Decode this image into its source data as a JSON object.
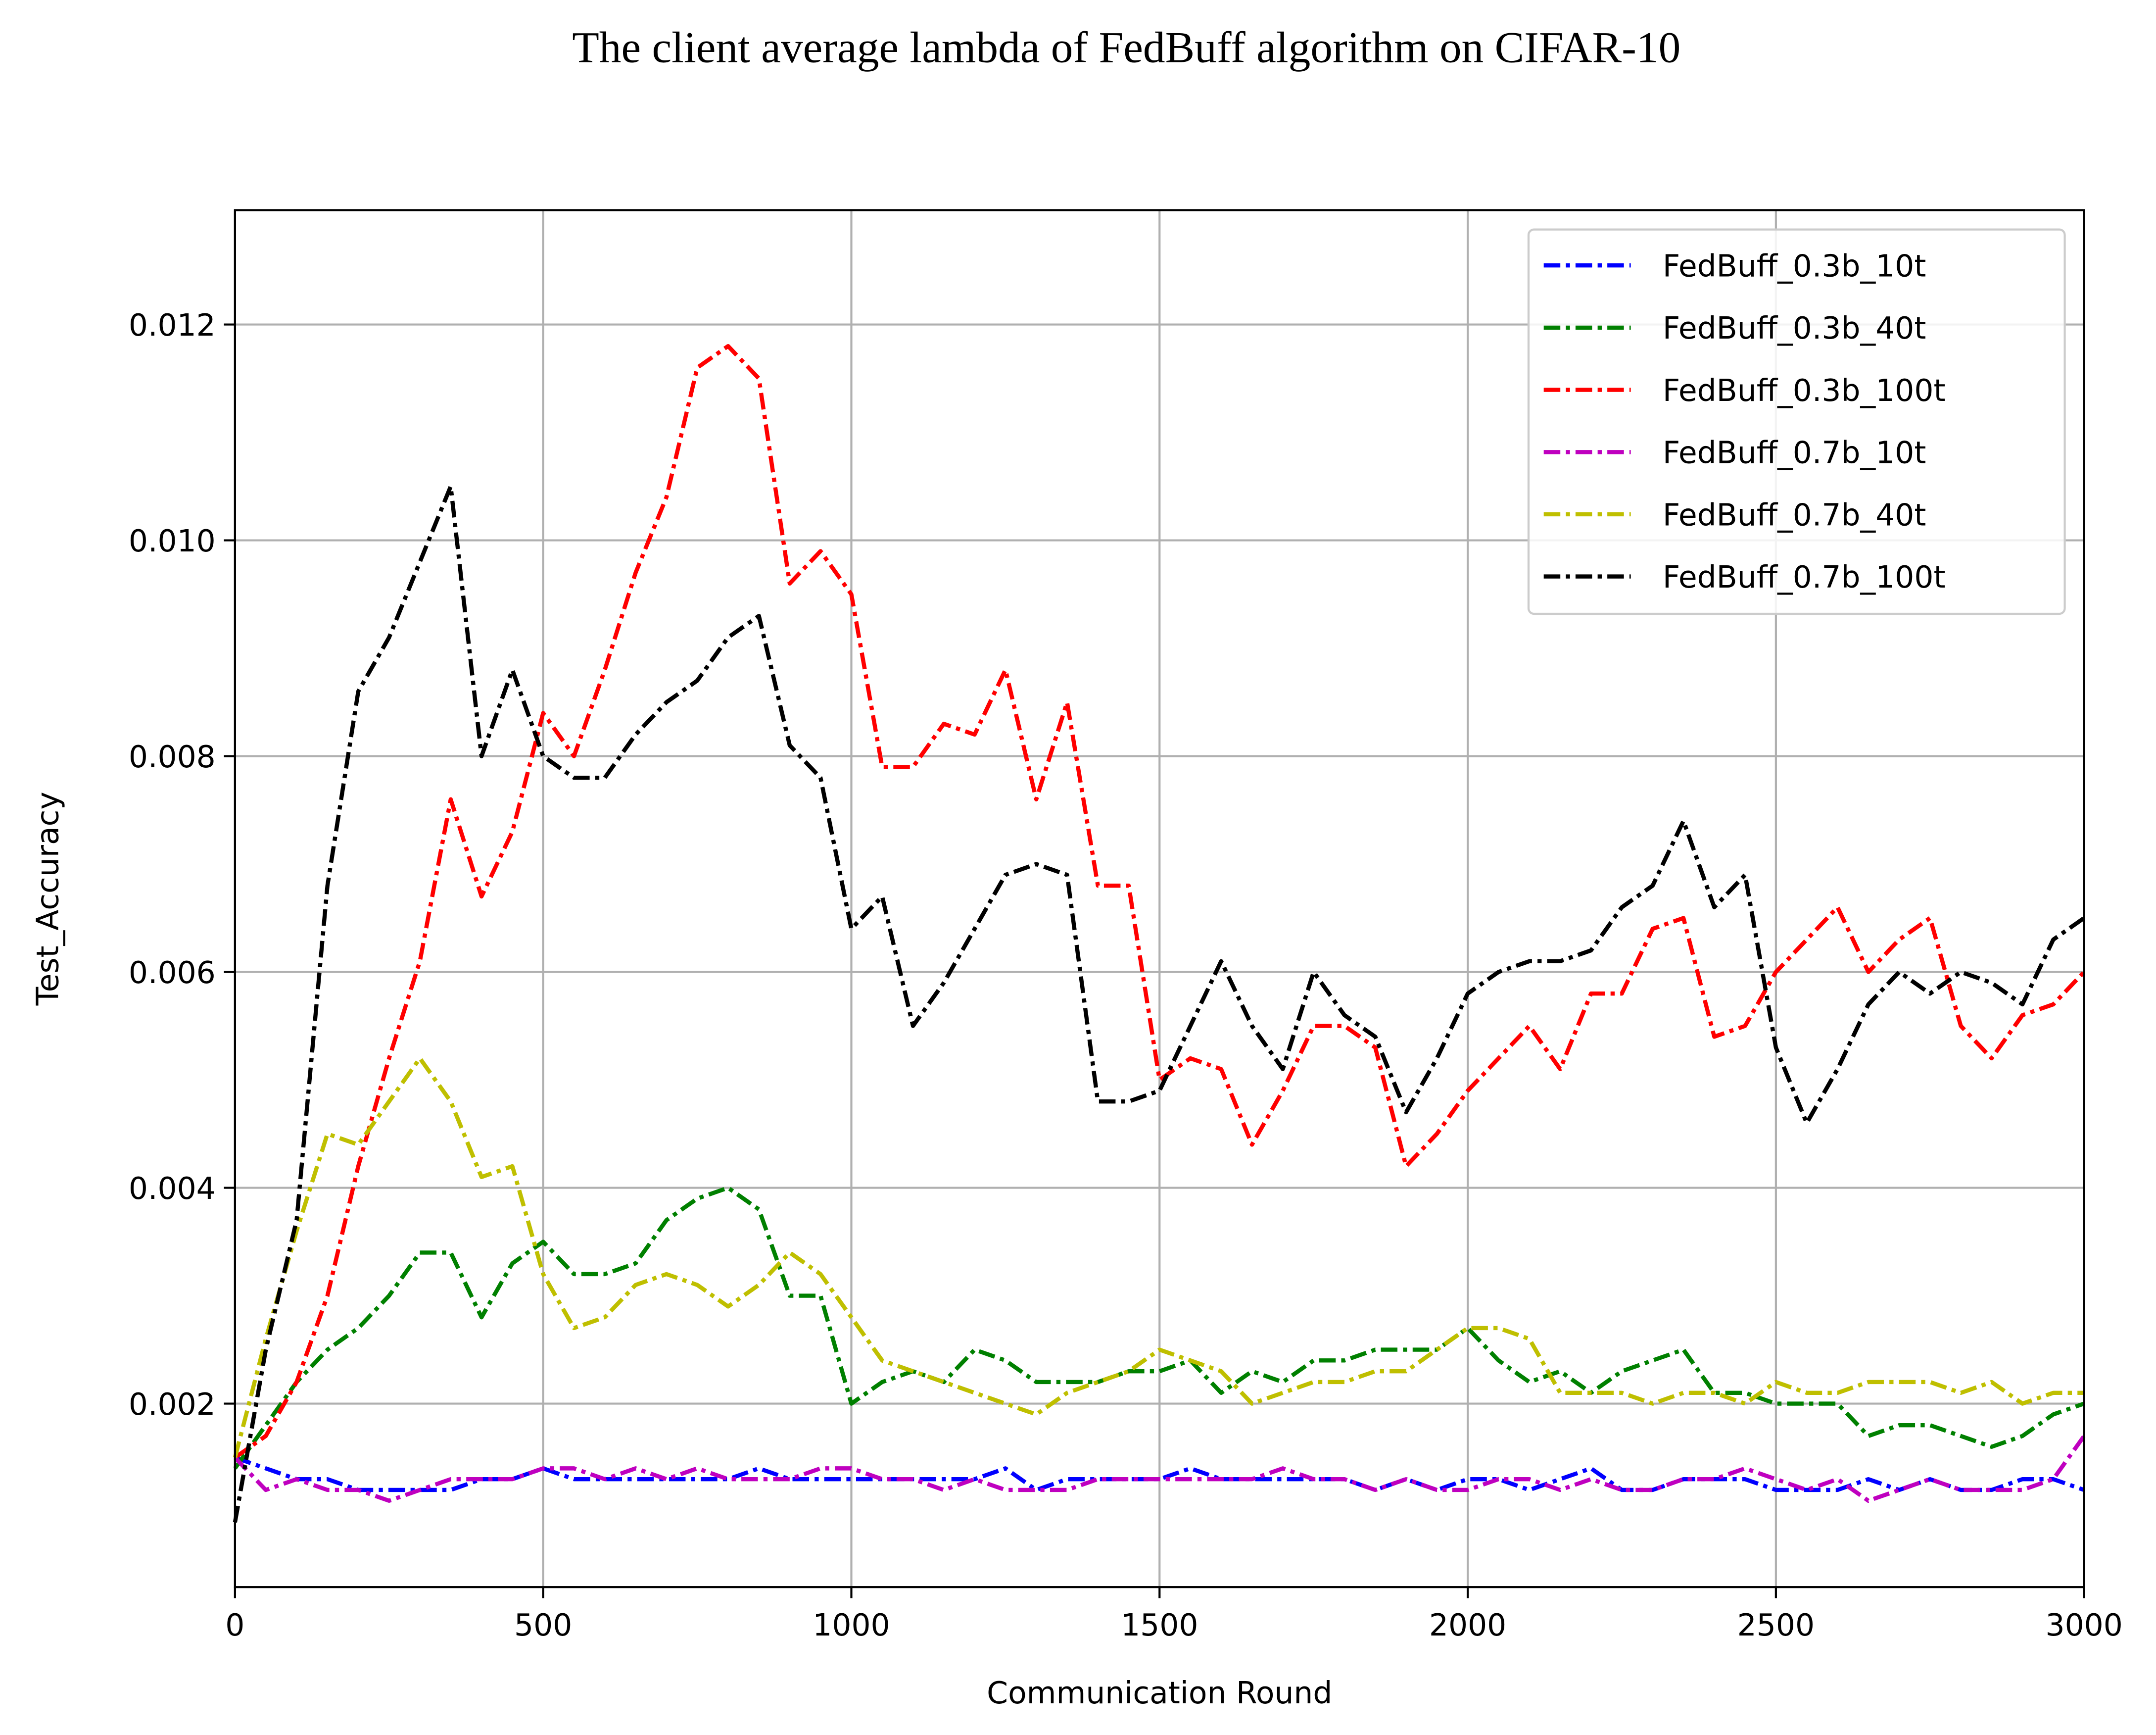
{
  "chart_data": {
    "type": "line",
    "title": "The client average lambda of FedBuff algorithm on CIFAR-10",
    "x_label": "Communication Round",
    "y_label": "Test_Accuracy",
    "xlim": [
      0,
      3000
    ],
    "ylim": [
      0.0003,
      0.01306
    ],
    "xticks": [
      0,
      500,
      1000,
      1500,
      2000,
      2500,
      3000
    ],
    "yticks": [
      0.002,
      0.004,
      0.006,
      0.008,
      {
        "value": 0.01,
        "label": "0.010"
      },
      0.012
    ],
    "grid": true,
    "legend": "upper right",
    "line_style": "dashdot",
    "x": [
      0,
      50,
      100,
      150,
      200,
      250,
      300,
      350,
      400,
      450,
      500,
      550,
      600,
      650,
      700,
      750,
      800,
      850,
      900,
      950,
      1000,
      1050,
      1100,
      1150,
      1200,
      1250,
      1300,
      1350,
      1400,
      1450,
      1500,
      1550,
      1600,
      1650,
      1700,
      1750,
      1800,
      1850,
      1900,
      1950,
      2000,
      2050,
      2100,
      2150,
      2200,
      2250,
      2300,
      2350,
      2400,
      2450,
      2500,
      2550,
      2600,
      2650,
      2700,
      2750,
      2800,
      2850,
      2900,
      2950,
      3000
    ],
    "series": [
      {
        "name": "FedBuff_0.3b_10t",
        "color": "#0000ff",
        "values": [
          0.0015,
          0.0014,
          0.0013,
          0.0013,
          0.0012,
          0.0012,
          0.0012,
          0.0012,
          0.0013,
          0.0013,
          0.0014,
          0.0013,
          0.0013,
          0.0013,
          0.0013,
          0.0013,
          0.0013,
          0.0014,
          0.0013,
          0.0013,
          0.0013,
          0.0013,
          0.0013,
          0.0013,
          0.0013,
          0.0014,
          0.0012,
          0.0013,
          0.0013,
          0.0013,
          0.0013,
          0.0014,
          0.0013,
          0.0013,
          0.0013,
          0.0013,
          0.0013,
          0.0012,
          0.0013,
          0.0012,
          0.0013,
          0.0013,
          0.0012,
          0.0013,
          0.0014,
          0.0012,
          0.0012,
          0.0013,
          0.0013,
          0.0013,
          0.0012,
          0.0012,
          0.0012,
          0.0013,
          0.0012,
          0.0013,
          0.0012,
          0.0012,
          0.0013,
          0.0013,
          0.0012
        ]
      },
      {
        "name": "FedBuff_0.3b_40t",
        "color": "#008000",
        "values": [
          0.0014,
          0.0018,
          0.0022,
          0.0025,
          0.0027,
          0.003,
          0.0034,
          0.0034,
          0.0028,
          0.0033,
          0.0035,
          0.0032,
          0.0032,
          0.0033,
          0.0037,
          0.0039,
          0.004,
          0.0038,
          0.003,
          0.003,
          0.002,
          0.0022,
          0.0023,
          0.0022,
          0.0025,
          0.0024,
          0.0022,
          0.0022,
          0.0022,
          0.0023,
          0.0023,
          0.0024,
          0.0021,
          0.0023,
          0.0022,
          0.0024,
          0.0024,
          0.0025,
          0.0025,
          0.0025,
          0.0027,
          0.0024,
          0.0022,
          0.0023,
          0.0021,
          0.0023,
          0.0024,
          0.0025,
          0.0021,
          0.0021,
          0.002,
          0.002,
          0.002,
          0.0017,
          0.0018,
          0.0018,
          0.0017,
          0.0016,
          0.0017,
          0.0019,
          0.002
        ]
      },
      {
        "name": "FedBuff_0.3b_100t",
        "color": "#ff0000",
        "values": [
          0.0015,
          0.0017,
          0.0022,
          0.003,
          0.0042,
          0.0052,
          0.0061,
          0.0076,
          0.0067,
          0.0073,
          0.0084,
          0.008,
          0.0088,
          0.0097,
          0.0104,
          0.0116,
          0.0118,
          0.0115,
          0.0096,
          0.0099,
          0.0095,
          0.0079,
          0.0079,
          0.0083,
          0.0082,
          0.0088,
          0.0076,
          0.0085,
          0.0068,
          0.0068,
          0.005,
          0.0052,
          0.0051,
          0.0044,
          0.0049,
          0.0055,
          0.0055,
          0.0053,
          0.0042,
          0.0045,
          0.0049,
          0.0052,
          0.0055,
          0.0051,
          0.0058,
          0.0058,
          0.0064,
          0.0065,
          0.0054,
          0.0055,
          0.006,
          0.0063,
          0.0066,
          0.006,
          0.0063,
          0.0065,
          0.0055,
          0.0052,
          0.0056,
          0.0057,
          0.006
        ]
      },
      {
        "name": "FedBuff_0.7b_10t",
        "color": "#bf00bf",
        "values": [
          0.0015,
          0.0012,
          0.0013,
          0.0012,
          0.0012,
          0.0011,
          0.0012,
          0.0013,
          0.0013,
          0.0013,
          0.0014,
          0.0014,
          0.0013,
          0.0014,
          0.0013,
          0.0014,
          0.0013,
          0.0013,
          0.0013,
          0.0014,
          0.0014,
          0.0013,
          0.0013,
          0.0012,
          0.0013,
          0.0012,
          0.0012,
          0.0012,
          0.0013,
          0.0013,
          0.0013,
          0.0013,
          0.0013,
          0.0013,
          0.0014,
          0.0013,
          0.0013,
          0.0012,
          0.0013,
          0.0012,
          0.0012,
          0.0013,
          0.0013,
          0.0012,
          0.0013,
          0.0012,
          0.0012,
          0.0013,
          0.0013,
          0.0014,
          0.0013,
          0.0012,
          0.0013,
          0.0011,
          0.0012,
          0.0013,
          0.0012,
          0.0012,
          0.0012,
          0.0013,
          0.0017
        ]
      },
      {
        "name": "FedBuff_0.7b_40t",
        "color": "#bfbf00",
        "values": [
          0.0015,
          0.0026,
          0.0036,
          0.0045,
          0.0044,
          0.0048,
          0.0052,
          0.0048,
          0.0041,
          0.0042,
          0.0032,
          0.0027,
          0.0028,
          0.0031,
          0.0032,
          0.0031,
          0.0029,
          0.0031,
          0.0034,
          0.0032,
          0.0028,
          0.0024,
          0.0023,
          0.0022,
          0.0021,
          0.002,
          0.0019,
          0.0021,
          0.0022,
          0.0023,
          0.0025,
          0.0024,
          0.0023,
          0.002,
          0.0021,
          0.0022,
          0.0022,
          0.0023,
          0.0023,
          0.0025,
          0.0027,
          0.0027,
          0.0026,
          0.0021,
          0.0021,
          0.0021,
          0.002,
          0.0021,
          0.0021,
          0.002,
          0.0022,
          0.0021,
          0.0021,
          0.0022,
          0.0022,
          0.0022,
          0.0021,
          0.0022,
          0.002,
          0.0021,
          0.0021
        ]
      },
      {
        "name": "FedBuff_0.7b_100t",
        "color": "#000000",
        "values": [
          0.0009,
          0.0025,
          0.0037,
          0.0068,
          0.0086,
          0.0091,
          0.0098,
          0.0105,
          0.008,
          0.0088,
          0.008,
          0.0078,
          0.0078,
          0.0082,
          0.0085,
          0.0087,
          0.0091,
          0.0093,
          0.0081,
          0.0078,
          0.0064,
          0.0067,
          0.0055,
          0.0059,
          0.0064,
          0.0069,
          0.007,
          0.0069,
          0.0048,
          0.0048,
          0.0049,
          0.0055,
          0.0061,
          0.0055,
          0.0051,
          0.006,
          0.0056,
          0.0054,
          0.0047,
          0.0052,
          0.0058,
          0.006,
          0.0061,
          0.0061,
          0.0062,
          0.0066,
          0.0068,
          0.0074,
          0.0066,
          0.0069,
          0.0053,
          0.0046,
          0.0051,
          0.0057,
          0.006,
          0.0058,
          0.006,
          0.0059,
          0.0057,
          0.0063,
          0.0065
        ]
      }
    ]
  }
}
